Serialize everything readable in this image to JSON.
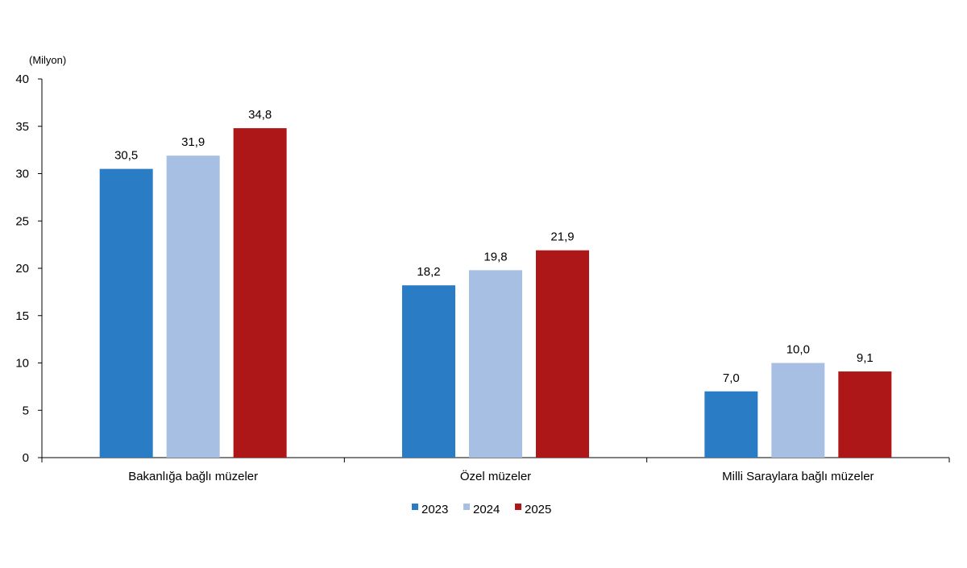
{
  "chart_data": {
    "type": "bar",
    "unit_label": "(Milyon)",
    "categories": [
      "Bakanlığa bağlı müzeler",
      "Özel müzeler",
      "Milli Saraylara bağlı müzeler"
    ],
    "series": [
      {
        "name": "2023",
        "color": "#2a7dc5",
        "values": [
          30.5,
          18.2,
          7.0
        ],
        "labels": [
          "30,5",
          "18,2",
          "7,0"
        ]
      },
      {
        "name": "2024",
        "color": "#a6bfe3",
        "values": [
          31.9,
          19.8,
          10.0
        ],
        "labels": [
          "31,9",
          "19,8",
          "10,0"
        ]
      },
      {
        "name": "2025",
        "color": "#ad1717",
        "values": [
          34.8,
          21.9,
          9.1
        ],
        "labels": [
          "34,8",
          "21,9",
          "9,1"
        ]
      }
    ],
    "ylim": [
      0,
      40
    ],
    "yticks": [
      0,
      5,
      10,
      15,
      20,
      25,
      30,
      35,
      40
    ],
    "xlabel": "",
    "ylabel": "",
    "grid": false,
    "legend_position": "bottom-center"
  }
}
